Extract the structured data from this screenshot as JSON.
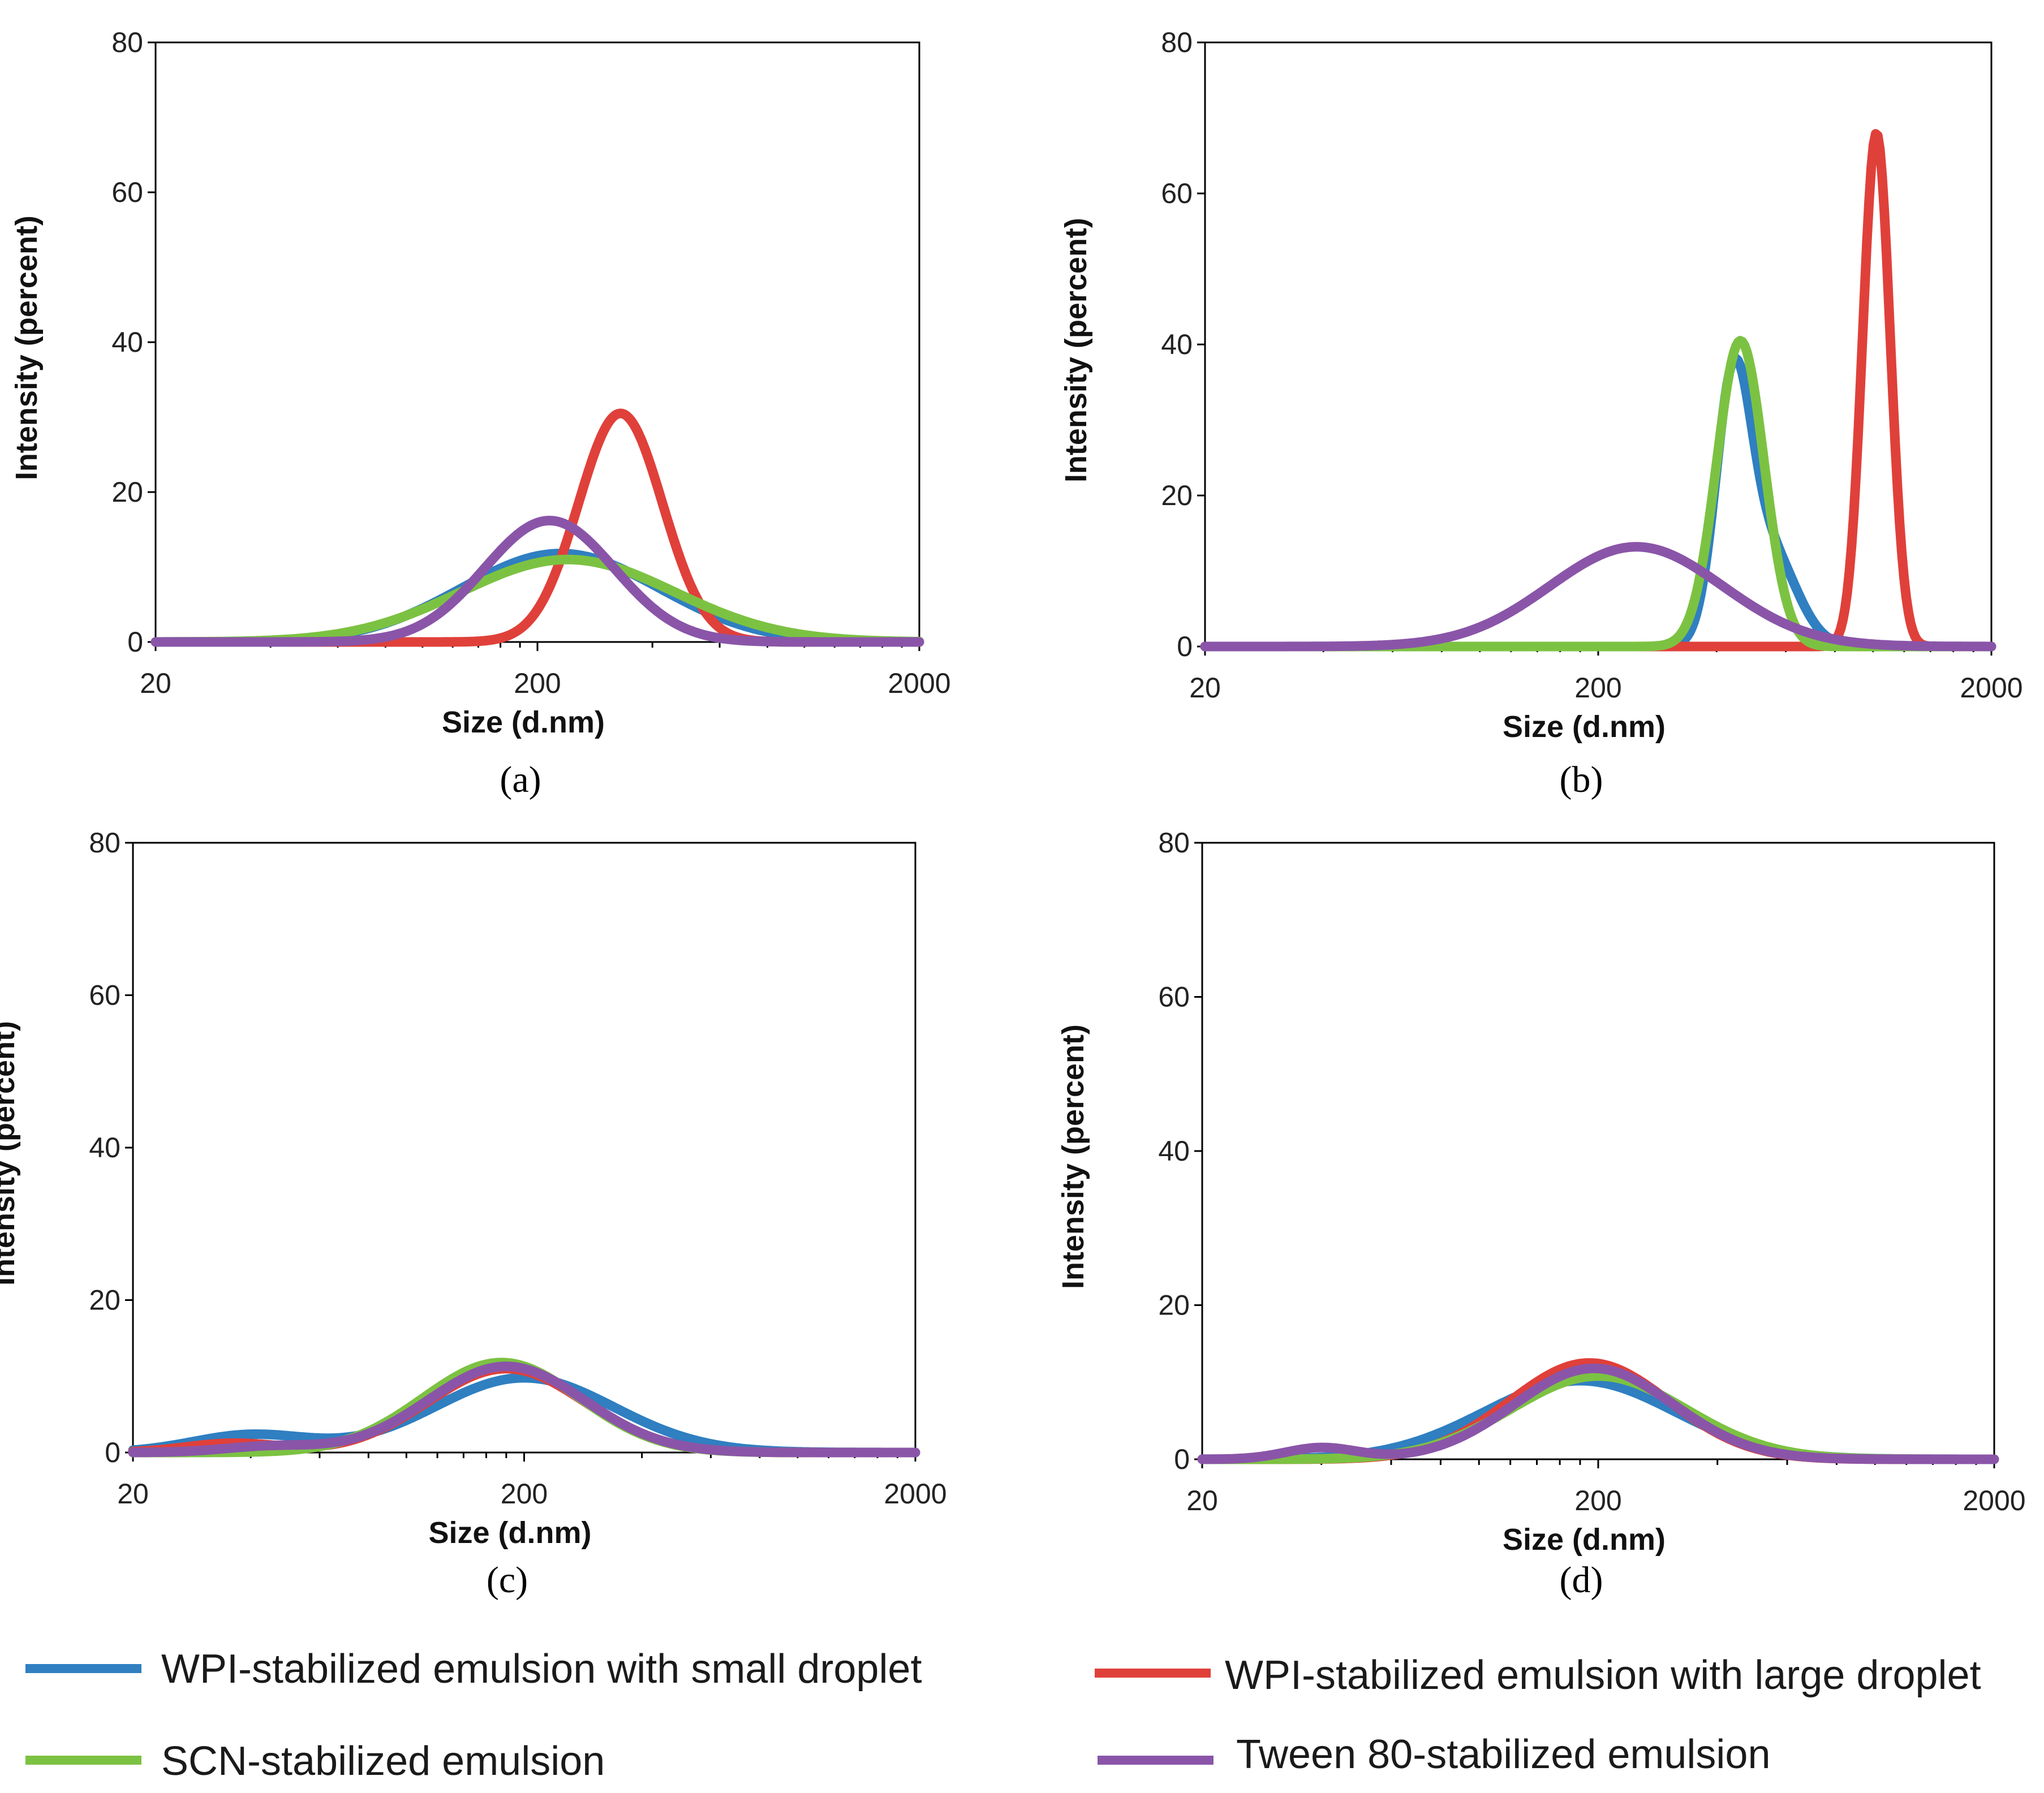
{
  "colors": {
    "wpi_small": "#2f7fc1",
    "wpi_large": "#e0403a",
    "scn": "#7cc242",
    "tween80": "#8a55a8"
  },
  "legend": [
    {
      "key": "wpi_small",
      "label": "WPI-stabilized emulsion with small droplet"
    },
    {
      "key": "wpi_large",
      "label": "WPI-stabilized emulsion with large droplet"
    },
    {
      "key": "scn",
      "label": "SCN-stabilized emulsion"
    },
    {
      "key": "tween80",
      "label": "Tween 80-stabilized emulsion"
    }
  ],
  "chart_data": [
    {
      "type": "line",
      "panel": "(a)",
      "xlabel": "Size (d.nm)",
      "ylabel": "Intensity (percent)",
      "xscale": "log",
      "xlim": [
        20,
        2000
      ],
      "ylim": [
        0,
        80
      ],
      "xticks": [
        "20",
        "200",
        "2000"
      ],
      "yticks": [
        "0",
        "20",
        "40",
        "60",
        "80"
      ],
      "series": [
        {
          "key": "wpi_small",
          "name": "WPI-stabilized emulsion with small droplet",
          "peaks": [
            {
              "center": 230,
              "height": 11.8,
              "width": 0.26
            }
          ]
        },
        {
          "key": "wpi_large",
          "name": "WPI-stabilized emulsion with large droplet",
          "peaks": [
            {
              "center": 330,
              "height": 30.5,
              "width": 0.11
            }
          ]
        },
        {
          "key": "scn",
          "name": "SCN-stabilized emulsion",
          "peaks": [
            {
              "center": 240,
              "height": 11.0,
              "width": 0.28
            }
          ]
        },
        {
          "key": "tween80",
          "name": "Tween 80-stabilized emulsion",
          "peaks": [
            {
              "center": 215,
              "height": 16.2,
              "width": 0.17
            }
          ]
        }
      ]
    },
    {
      "type": "line",
      "panel": "(b)",
      "xlabel": "Size (d.nm)",
      "ylabel": "Intensity (percent)",
      "xscale": "log",
      "xlim": [
        20,
        2000
      ],
      "ylim": [
        0,
        80
      ],
      "xticks": [
        "20",
        "200",
        "2000"
      ],
      "yticks": [
        "0",
        "20",
        "40",
        "60",
        "80"
      ],
      "series": [
        {
          "key": "wpi_small",
          "name": "WPI-stabilized emulsion with small droplet",
          "peaks": [
            {
              "center": 440,
              "height": 32.0,
              "width": 0.045
            },
            {
              "center": 540,
              "height": 13.0,
              "width": 0.07
            }
          ]
        },
        {
          "key": "wpi_large",
          "name": "WPI-stabilized emulsion with large droplet",
          "peaks": [
            {
              "center": 1020,
              "height": 68.0,
              "width": 0.035
            }
          ]
        },
        {
          "key": "scn",
          "name": "SCN-stabilized emulsion",
          "peaks": [
            {
              "center": 460,
              "height": 40.5,
              "width": 0.06
            }
          ]
        },
        {
          "key": "tween80",
          "name": "Tween 80-stabilized emulsion",
          "peaks": [
            {
              "center": 250,
              "height": 13.2,
              "width": 0.22
            }
          ]
        }
      ]
    },
    {
      "type": "line",
      "panel": "(c)",
      "xlabel": "Size (d.nm)",
      "ylabel": "Intensity (percent)",
      "xscale": "log",
      "xlim": [
        20,
        2000
      ],
      "ylim": [
        0,
        80
      ],
      "xticks": [
        "20",
        "200",
        "2000"
      ],
      "yticks": [
        "0",
        "20",
        "40",
        "60",
        "80"
      ],
      "series": [
        {
          "key": "wpi_small",
          "name": "WPI-stabilized emulsion with small droplet",
          "peaks": [
            {
              "center": 40,
              "height": 2.3,
              "width": 0.15
            },
            {
              "center": 200,
              "height": 9.8,
              "width": 0.23
            }
          ]
        },
        {
          "key": "wpi_large",
          "name": "WPI-stabilized emulsion with large droplet",
          "peaks": [
            {
              "center": 36,
              "height": 1.2,
              "width": 0.12
            },
            {
              "center": 180,
              "height": 11.0,
              "width": 0.2
            }
          ]
        },
        {
          "key": "scn",
          "name": "SCN-stabilized emulsion",
          "peaks": [
            {
              "center": 175,
              "height": 11.8,
              "width": 0.2
            }
          ]
        },
        {
          "key": "tween80",
          "name": "Tween 80-stabilized emulsion",
          "peaks": [
            {
              "center": 45,
              "height": 0.8,
              "width": 0.12
            },
            {
              "center": 180,
              "height": 11.3,
              "width": 0.2
            }
          ]
        }
      ]
    },
    {
      "type": "line",
      "panel": "(d)",
      "xlabel": "Size (d.nm)",
      "ylabel": "Intensity (percent)",
      "xscale": "log",
      "xlim": [
        20,
        2000
      ],
      "ylim": [
        0,
        80
      ],
      "xticks": [
        "20",
        "200",
        "2000"
      ],
      "yticks": [
        "0",
        "20",
        "40",
        "60",
        "80"
      ],
      "series": [
        {
          "key": "wpi_small",
          "name": "WPI-stabilized emulsion with small droplet",
          "peaks": [
            {
              "center": 180,
              "height": 10.2,
              "width": 0.24
            }
          ]
        },
        {
          "key": "wpi_large",
          "name": "WPI-stabilized emulsion with large droplet",
          "peaks": [
            {
              "center": 190,
              "height": 12.5,
              "width": 0.2
            }
          ]
        },
        {
          "key": "scn",
          "name": "SCN-stabilized emulsion",
          "peaks": [
            {
              "center": 200,
              "height": 10.8,
              "width": 0.22
            }
          ]
        },
        {
          "key": "tween80",
          "name": "Tween 80-stabilized emulsion",
          "peaks": [
            {
              "center": 40,
              "height": 1.5,
              "width": 0.09
            },
            {
              "center": 195,
              "height": 11.8,
              "width": 0.2
            }
          ]
        }
      ]
    }
  ]
}
